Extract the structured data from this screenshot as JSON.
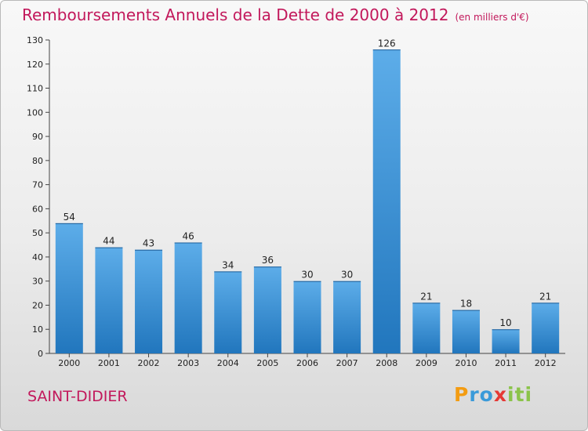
{
  "title": "Remboursements Annuels de la Dette de 2000 à 2012",
  "unit": "(en milliers d'€)",
  "commune": "SAINT-DIDIER",
  "logo": {
    "letters": [
      "P",
      "r",
      "o",
      "x",
      "i",
      "t",
      "i"
    ],
    "colors": [
      "#f39c12",
      "#3a9ad9",
      "#3a9ad9",
      "#e53935",
      "#8bc34a",
      "#8bc34a",
      "#8bc34a"
    ]
  },
  "chart_data": {
    "type": "bar",
    "categories": [
      "2000",
      "2001",
      "2002",
      "2003",
      "2004",
      "2005",
      "2006",
      "2007",
      "2008",
      "2009",
      "2010",
      "2011",
      "2012"
    ],
    "values": [
      54,
      44,
      43,
      46,
      34,
      36,
      30,
      30,
      126,
      21,
      18,
      10,
      21
    ],
    "ylim": [
      0,
      130
    ],
    "yticks": [
      0,
      10,
      20,
      30,
      40,
      50,
      60,
      70,
      80,
      90,
      100,
      110,
      120,
      130
    ],
    "grid": false,
    "bar_color": "#3a8fd6"
  }
}
